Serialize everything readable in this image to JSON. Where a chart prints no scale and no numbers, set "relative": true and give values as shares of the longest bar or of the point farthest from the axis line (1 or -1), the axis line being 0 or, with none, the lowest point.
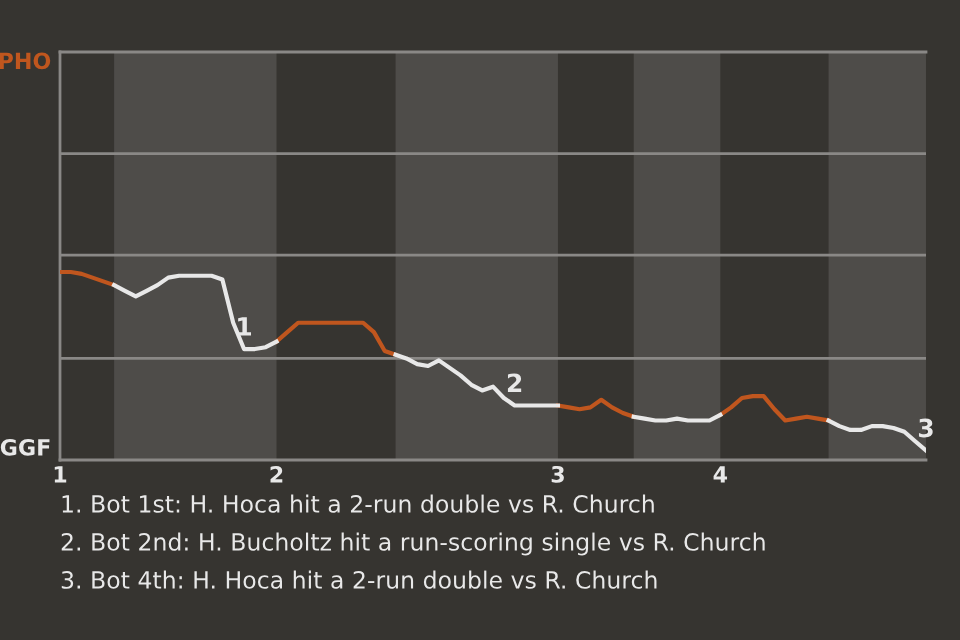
{
  "chart_data": {
    "type": "line",
    "relative": true,
    "categories": [
      "1",
      null,
      null,
      null,
      null,
      null,
      null,
      null,
      null,
      null,
      null,
      null,
      null,
      null,
      null,
      null,
      null,
      null,
      null,
      null,
      "2",
      null,
      null,
      null,
      null,
      null,
      null,
      null,
      null,
      null,
      null,
      null,
      null,
      null,
      null,
      null,
      null,
      null,
      null,
      null,
      null,
      null,
      null,
      null,
      null,
      null,
      "3",
      null,
      null,
      null,
      null,
      null,
      null,
      null,
      null,
      null,
      null,
      null,
      null,
      null,
      null,
      "4",
      null,
      null,
      null,
      null,
      null,
      null,
      null,
      null,
      null,
      null,
      null,
      null,
      null,
      null,
      null,
      null,
      null,
      null,
      null
    ],
    "marker": "none",
    "line_style": "solid",
    "series": [
      {
        "name": "PHO",
        "color": "#c0561e",
        "values": [
          1.0,
          1.0,
          0.99,
          0.97,
          0.95,
          0.93,
          null,
          null,
          null,
          null,
          null,
          null,
          null,
          null,
          null,
          null,
          null,
          null,
          null,
          null,
          0.63,
          0.68,
          0.73,
          0.73,
          0.73,
          0.73,
          0.73,
          0.73,
          0.73,
          0.68,
          0.58,
          0.56,
          null,
          null,
          null,
          null,
          null,
          null,
          null,
          null,
          null,
          null,
          null,
          null,
          null,
          null,
          0.29,
          0.28,
          0.27,
          0.28,
          0.32,
          0.28,
          0.25,
          0.23,
          null,
          null,
          null,
          null,
          null,
          null,
          null,
          0.24,
          0.28,
          0.33,
          0.34,
          0.34,
          0.27,
          0.21,
          0.22,
          0.23,
          0.22,
          0.21,
          null,
          null,
          null,
          null,
          null,
          null,
          null,
          null,
          null
        ]
      },
      {
        "name": "GGF",
        "color": "#e8e8e8",
        "values": [
          null,
          null,
          null,
          null,
          null,
          0.93,
          0.9,
          0.87,
          0.9,
          0.93,
          0.97,
          0.98,
          0.98,
          0.98,
          0.98,
          0.96,
          0.73,
          0.59,
          0.59,
          0.6,
          0.63,
          null,
          null,
          null,
          null,
          null,
          null,
          null,
          null,
          null,
          null,
          0.56,
          0.54,
          0.51,
          0.5,
          0.53,
          0.49,
          0.45,
          0.4,
          0.37,
          0.39,
          0.33,
          0.29,
          0.29,
          0.29,
          0.29,
          0.29,
          null,
          null,
          null,
          null,
          null,
          null,
          0.23,
          0.22,
          0.21,
          0.21,
          0.22,
          0.21,
          0.21,
          0.21,
          0.24,
          null,
          null,
          null,
          null,
          null,
          null,
          null,
          null,
          null,
          0.21,
          0.18,
          0.16,
          0.16,
          0.18,
          0.18,
          0.17,
          0.15,
          0.1,
          0.05
        ]
      }
    ],
    "ref_lines": [
      {
        "axis": "y",
        "value": 0.54,
        "color": "#8a8886"
      },
      {
        "axis": "y",
        "value": 1.09,
        "color": "#8a8886"
      },
      {
        "axis": "y",
        "value": 1.63,
        "color": "#8a8886"
      }
    ],
    "annotations": [
      {
        "text": "1",
        "y": 0.59
      },
      {
        "text": "2",
        "y": 0.29
      },
      {
        "text": "3",
        "y": 0.05
      },
      "1. Bot 1st: H. Hoca hit a 2-run double vs R. Church",
      "2. Bot 2nd: H. Bucholtz hit a run-scoring single vs R. Church",
      "3. Bot 4th: H. Hoca hit a 2-run double vs R. Church"
    ]
  }
}
